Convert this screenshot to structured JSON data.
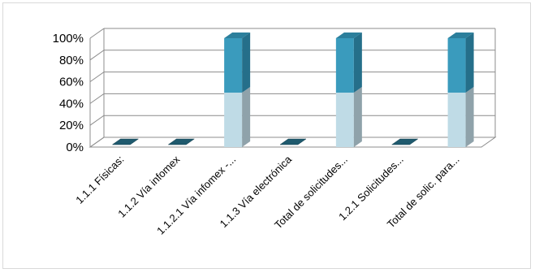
{
  "chart_data": {
    "type": "bar",
    "stacked": true,
    "three_d": true,
    "categories": [
      "1.1.1 Físicas:",
      "1.1.2 Vía infomex",
      "1.1.2.1 Vía infomex -...",
      "1.1.3 Vía electrónica",
      "Total de solicitudes...",
      "1.2.1 Solicitudes...",
      "Total de solic. para..."
    ],
    "series": [
      {
        "values": [
          0,
          0,
          50,
          0,
          50,
          0,
          50
        ]
      },
      {
        "values": [
          0,
          0,
          50,
          0,
          50,
          0,
          50
        ]
      }
    ],
    "y_ticks": [
      "0%",
      "20%",
      "40%",
      "60%",
      "80%",
      "100%"
    ],
    "ylim": [
      0,
      100
    ],
    "grid": true,
    "legend": "none",
    "colors": {
      "lower_front": "#bfdbe6",
      "lower_side": "#8fa2aa",
      "upper_front": "#3a9bbd",
      "upper_side": "#256f8a",
      "upper_top": "#2c7f9c",
      "flat_top": "#1f5a6e",
      "grid": "#8c8c8c",
      "wall": "#ffffff"
    }
  }
}
